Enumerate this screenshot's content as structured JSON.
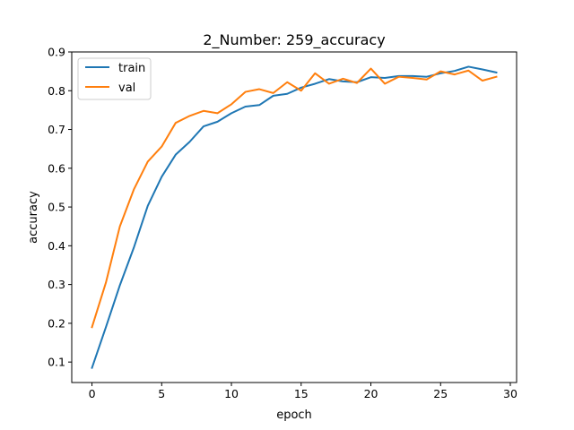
{
  "chart_data": {
    "type": "line",
    "title": "2_Number: 259_accuracy",
    "xlabel": "epoch",
    "ylabel": "accuracy",
    "xlim": [
      -1.45,
      30.45
    ],
    "ylim": [
      0.0472,
      0.9
    ],
    "xticks": [
      0,
      5,
      10,
      15,
      20,
      25,
      30
    ],
    "xtick_labels": [
      "0",
      "5",
      "10",
      "15",
      "20",
      "25",
      "30"
    ],
    "yticks": [
      0.1,
      0.2,
      0.3,
      0.4,
      0.5,
      0.6,
      0.7,
      0.8,
      0.9
    ],
    "ytick_labels": [
      "0.1",
      "0.2",
      "0.3",
      "0.4",
      "0.5",
      "0.6",
      "0.7",
      "0.8",
      "0.9"
    ],
    "grid": false,
    "legend": "top-left",
    "x": [
      0,
      1,
      2,
      3,
      4,
      5,
      6,
      7,
      8,
      9,
      10,
      11,
      12,
      13,
      14,
      15,
      16,
      17,
      18,
      19,
      20,
      21,
      22,
      23,
      24,
      25,
      26,
      27,
      28,
      29
    ],
    "series": [
      {
        "name": "train",
        "color": "#1f77b4",
        "values": [
          0.085,
          0.19,
          0.298,
          0.395,
          0.503,
          0.578,
          0.635,
          0.668,
          0.708,
          0.72,
          0.742,
          0.759,
          0.763,
          0.787,
          0.792,
          0.808,
          0.818,
          0.83,
          0.824,
          0.822,
          0.835,
          0.833,
          0.838,
          0.838,
          0.836,
          0.845,
          0.851,
          0.862,
          0.855,
          0.847
        ]
      },
      {
        "name": "val",
        "color": "#ff7f0e",
        "values": [
          0.19,
          0.305,
          0.45,
          0.545,
          0.617,
          0.656,
          0.717,
          0.735,
          0.748,
          0.742,
          0.765,
          0.797,
          0.804,
          0.794,
          0.822,
          0.8,
          0.845,
          0.818,
          0.831,
          0.82,
          0.857,
          0.818,
          0.836,
          0.833,
          0.829,
          0.85,
          0.842,
          0.852,
          0.826,
          0.836
        ]
      }
    ]
  }
}
